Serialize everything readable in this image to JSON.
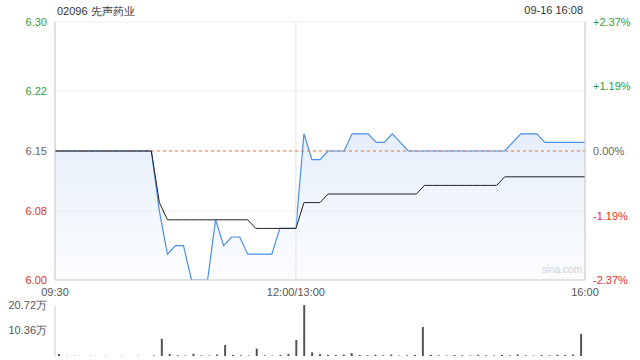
{
  "chart_data": [
    {
      "type": "line",
      "title": "02096 先声药业",
      "subtitle": "09-16 16:08",
      "annotation": "sina.com",
      "grid": true,
      "previous_close": 6.15,
      "categories": [
        "09:30",
        null,
        null,
        null,
        null,
        null,
        null,
        null,
        null,
        null,
        null,
        null,
        null,
        null,
        null,
        null,
        null,
        null,
        null,
        null,
        null,
        null,
        null,
        null,
        null,
        null,
        null,
        null,
        null,
        null,
        "12:00/13:00",
        null,
        null,
        null,
        null,
        null,
        null,
        null,
        null,
        null,
        null,
        null,
        null,
        null,
        null,
        null,
        null,
        null,
        null,
        null,
        null,
        null,
        null,
        null,
        null,
        null,
        null,
        null,
        null,
        null,
        null,
        null,
        null,
        null,
        null,
        null,
        "16:00"
      ],
      "ylim": [
        6,
        6.3
      ],
      "yticks": [
        {
          "value": 6,
          "label": "6.00"
        },
        6.08,
        6.15,
        6.22,
        {
          "value": 6.3,
          "label": "6.30"
        }
      ],
      "y2lim": [
        -2.37,
        2.37
      ],
      "y2ticks": [
        {
          "value": -2.37,
          "label": "-2.37%"
        },
        {
          "value": -1.19,
          "label": "-1.19%"
        },
        {
          "value": 0,
          "label": "0.00%"
        },
        {
          "value": 1.19,
          "label": "+1.19%"
        },
        {
          "value": 2.37,
          "label": "+2.37%"
        }
      ],
      "series": [
        {
          "type": "area",
          "color": "#4a8fe7",
          "values": [
            6.15,
            6.15,
            6.15,
            6.15,
            6.15,
            6.15,
            6.15,
            6.15,
            6.15,
            6.15,
            6.15,
            6.15,
            6.15,
            6.08,
            6.03,
            6.04,
            6.04,
            6,
            6,
            6,
            6.07,
            6.04,
            6.05,
            6.05,
            6.03,
            6.03,
            6.03,
            6.03,
            6.06,
            6.06,
            6.06,
            6.17,
            6.14,
            6.14,
            6.15,
            6.15,
            6.15,
            6.17,
            6.17,
            6.17,
            6.16,
            6.16,
            6.17,
            6.16,
            6.15,
            6.15,
            6.15,
            6.15,
            6.15,
            6.15,
            6.15,
            6.15,
            6.15,
            6.15,
            6.15,
            6.15,
            6.15,
            6.16,
            6.17,
            6.17,
            6.17,
            6.16,
            6.16,
            6.16,
            6.16,
            6.16,
            6.16
          ]
        },
        {
          "type": "line",
          "color": "#222222",
          "values": [
            6.15,
            6.15,
            6.15,
            6.15,
            6.15,
            6.15,
            6.15,
            6.15,
            6.15,
            6.15,
            6.15,
            6.15,
            6.15,
            6.09,
            6.07,
            6.07,
            6.07,
            6.07,
            6.07,
            6.07,
            6.07,
            6.07,
            6.07,
            6.07,
            6.07,
            6.06,
            6.06,
            6.06,
            6.06,
            6.06,
            6.06,
            6.09,
            6.09,
            6.09,
            6.1,
            6.1,
            6.1,
            6.1,
            6.1,
            6.1,
            6.1,
            6.1,
            6.1,
            6.1,
            6.1,
            6.1,
            6.11,
            6.11,
            6.11,
            6.11,
            6.11,
            6.11,
            6.11,
            6.11,
            6.11,
            6.11,
            6.12,
            6.12,
            6.12,
            6.12,
            6.12,
            6.12,
            6.12,
            6.12,
            6.12,
            6.12,
            6.12
          ]
        }
      ]
    },
    {
      "type": "bar",
      "color": "#555555",
      "tick_labels": "y",
      "ylim": [
        0,
        207200
      ],
      "yticks": [
        0,
        {
          "value": 103600,
          "label": "10.36万"
        },
        {
          "value": 207200,
          "label": "20.72万"
        }
      ],
      "values": [
        8000,
        1000,
        1000,
        0,
        1000,
        0,
        1000,
        0,
        1000,
        0,
        1000,
        0,
        2000,
        70000,
        8000,
        3000,
        2000,
        9000,
        3000,
        2000,
        6000,
        45000,
        4000,
        3000,
        2000,
        30000,
        3000,
        2000,
        4000,
        9000,
        65000,
        207000,
        15000,
        8000,
        5000,
        4000,
        6000,
        12000,
        4000,
        3000,
        5000,
        3000,
        6000,
        2000,
        3000,
        4000,
        118000,
        5000,
        3000,
        2000,
        4000,
        3000,
        2000,
        5000,
        3000,
        2000,
        4000,
        3000,
        6000,
        3000,
        2000,
        4000,
        3000,
        5000,
        4000,
        6000,
        90000
      ]
    }
  ]
}
